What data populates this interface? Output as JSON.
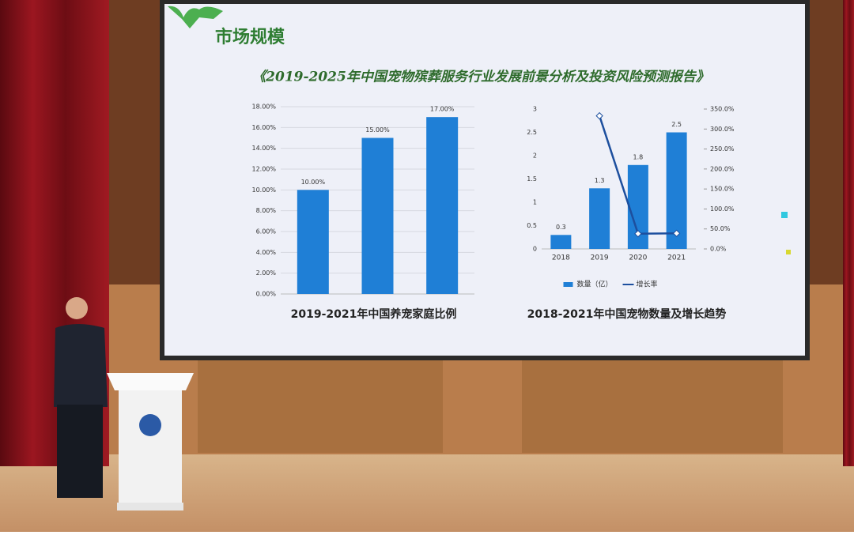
{
  "slide": {
    "heading": "市场规模",
    "report_title": "《2019-2025年中国宠物殡葬服务行业发展前景分析及投资风险预测报告》"
  },
  "chart_data": [
    {
      "type": "bar",
      "title": "2019-2021年中国养宠家庭比例",
      "categories": [
        null,
        null,
        null
      ],
      "values": [
        10,
        15,
        17
      ],
      "value_labels": [
        "10.00%",
        "15.00%",
        "17.00%"
      ],
      "color": "#1f7fd6",
      "ylim": [
        0,
        18
      ],
      "yticks": [
        {
          "value": 0,
          "label": "0.00%"
        },
        {
          "value": 2,
          "label": "2.00%"
        },
        {
          "value": 4,
          "label": "4.00%"
        },
        {
          "value": 6,
          "label": "6.00%"
        },
        {
          "value": 8,
          "label": "8.00%"
        },
        {
          "value": 10,
          "label": "10.00%"
        },
        {
          "value": 12,
          "label": "12.00%"
        },
        {
          "value": 14,
          "label": "14.00%"
        },
        {
          "value": 16,
          "label": "16.00%"
        },
        {
          "value": 18,
          "label": "18.00%"
        }
      ],
      "grid": true
    },
    {
      "type": "bar",
      "title": "2018-2021年中国宠物数量及增长趋势",
      "categories": [
        "2018",
        "2019",
        "2020",
        "2021"
      ],
      "series": [
        {
          "name": "数量（亿）",
          "type": "bar",
          "color": "#1f7fd6",
          "values": [
            0.3,
            1.3,
            1.8,
            2.5
          ]
        },
        {
          "name": "增长率",
          "type": "line",
          "axis": "y2",
          "color": "#1d4f9e",
          "values": [
            null,
            333,
            38,
            39
          ]
        }
      ],
      "ylim": [
        0,
        3
      ],
      "yticks": [
        0,
        0.5,
        1,
        1.5,
        2,
        2.5,
        3
      ],
      "y2lim": [
        0,
        350
      ],
      "y2ticks": [
        {
          "value": 0,
          "label": "0.0%"
        },
        {
          "value": 50,
          "label": "50.0%"
        },
        {
          "value": 100,
          "label": "100.0%"
        },
        {
          "value": 150,
          "label": "150.0%"
        },
        {
          "value": 200,
          "label": "200.0%"
        },
        {
          "value": 250,
          "label": "250.0%"
        },
        {
          "value": 300,
          "label": "300.0%"
        },
        {
          "value": 350,
          "label": "350.0%"
        }
      ],
      "grid": false,
      "legend": "bottom"
    }
  ]
}
